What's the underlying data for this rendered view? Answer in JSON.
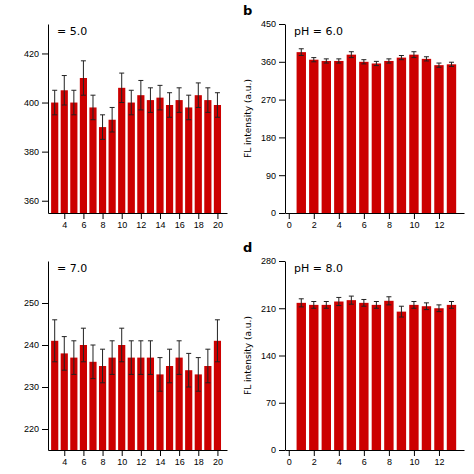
{
  "chart_data": [
    {
      "type": "bar",
      "title": "= 5.0",
      "x": [
        3,
        4,
        5,
        6,
        7,
        8,
        9,
        10,
        11,
        12,
        13,
        14,
        15,
        16,
        17,
        18,
        19,
        20
      ],
      "values": [
        400,
        405,
        400,
        410,
        398,
        390,
        393,
        406,
        400,
        403,
        401,
        402,
        399,
        401,
        398,
        403,
        401,
        399
      ],
      "errors": [
        5,
        6,
        5,
        7,
        5,
        5,
        5,
        6,
        5,
        6,
        5,
        5,
        5,
        5,
        5,
        5,
        5,
        5
      ],
      "xlim": [
        2.3,
        21.0
      ],
      "ylim": [
        355,
        432
      ],
      "xticks": [
        4,
        6,
        8,
        10,
        12,
        14,
        16,
        18,
        20
      ],
      "yticks": [
        360,
        380,
        400,
        420
      ],
      "color": "#CC0000"
    },
    {
      "type": "bar",
      "title": "pH = 6.0",
      "ylabel": "FL intensity (a.u.)",
      "annotations": [
        "b"
      ],
      "x": [
        1,
        2,
        3,
        4,
        5,
        6,
        7,
        8,
        9,
        10,
        11,
        12,
        13
      ],
      "values": [
        383,
        365,
        362,
        362,
        377,
        360,
        356,
        362,
        370,
        377,
        367,
        352,
        354
      ],
      "errors": [
        8,
        5,
        5,
        5,
        7,
        5,
        5,
        5,
        5,
        7,
        5,
        5,
        5
      ],
      "xlim": [
        -0.3,
        14.0
      ],
      "ylim": [
        0,
        450
      ],
      "xticks": [
        0,
        2,
        4,
        6,
        8,
        10,
        12
      ],
      "yticks": [
        0,
        90,
        180,
        270,
        360,
        450
      ],
      "color": "#CC0000"
    },
    {
      "type": "bar",
      "title": "= 7.0",
      "x": [
        3,
        4,
        5,
        6,
        7,
        8,
        9,
        10,
        11,
        12,
        13,
        14,
        15,
        16,
        17,
        18,
        19,
        20
      ],
      "values": [
        241,
        238,
        237,
        240,
        236,
        235,
        237,
        240,
        237,
        237,
        237,
        233,
        235,
        237,
        234,
        233,
        235,
        241
      ],
      "errors": [
        5,
        4,
        4,
        4,
        4,
        4,
        4,
        4,
        4,
        4,
        4,
        4,
        4,
        4,
        4,
        4,
        4,
        5
      ],
      "xlim": [
        2.3,
        21.0
      ],
      "ylim": [
        215,
        260
      ],
      "xticks": [
        4,
        6,
        8,
        10,
        12,
        14,
        16,
        18,
        20
      ],
      "yticks": [
        220,
        230,
        240,
        250
      ],
      "color": "#CC0000"
    },
    {
      "type": "bar",
      "title": "pH = 8.0",
      "ylabel": "FL intensity (a.u.)",
      "annotations": [
        "d"
      ],
      "x": [
        1,
        2,
        3,
        4,
        5,
        6,
        7,
        8,
        9,
        10,
        11,
        12,
        13
      ],
      "values": [
        218,
        215,
        215,
        220,
        222,
        218,
        215,
        221,
        205,
        215,
        213,
        210,
        215
      ],
      "errors": [
        6,
        5,
        5,
        6,
        6,
        5,
        5,
        6,
        8,
        5,
        5,
        5,
        5
      ],
      "xlim": [
        -0.3,
        14.0
      ],
      "ylim": [
        0,
        280
      ],
      "xticks": [
        0,
        2,
        4,
        6,
        8,
        10,
        12
      ],
      "yticks": [
        0,
        70,
        140,
        210,
        280
      ],
      "color": "#CC0000"
    }
  ]
}
